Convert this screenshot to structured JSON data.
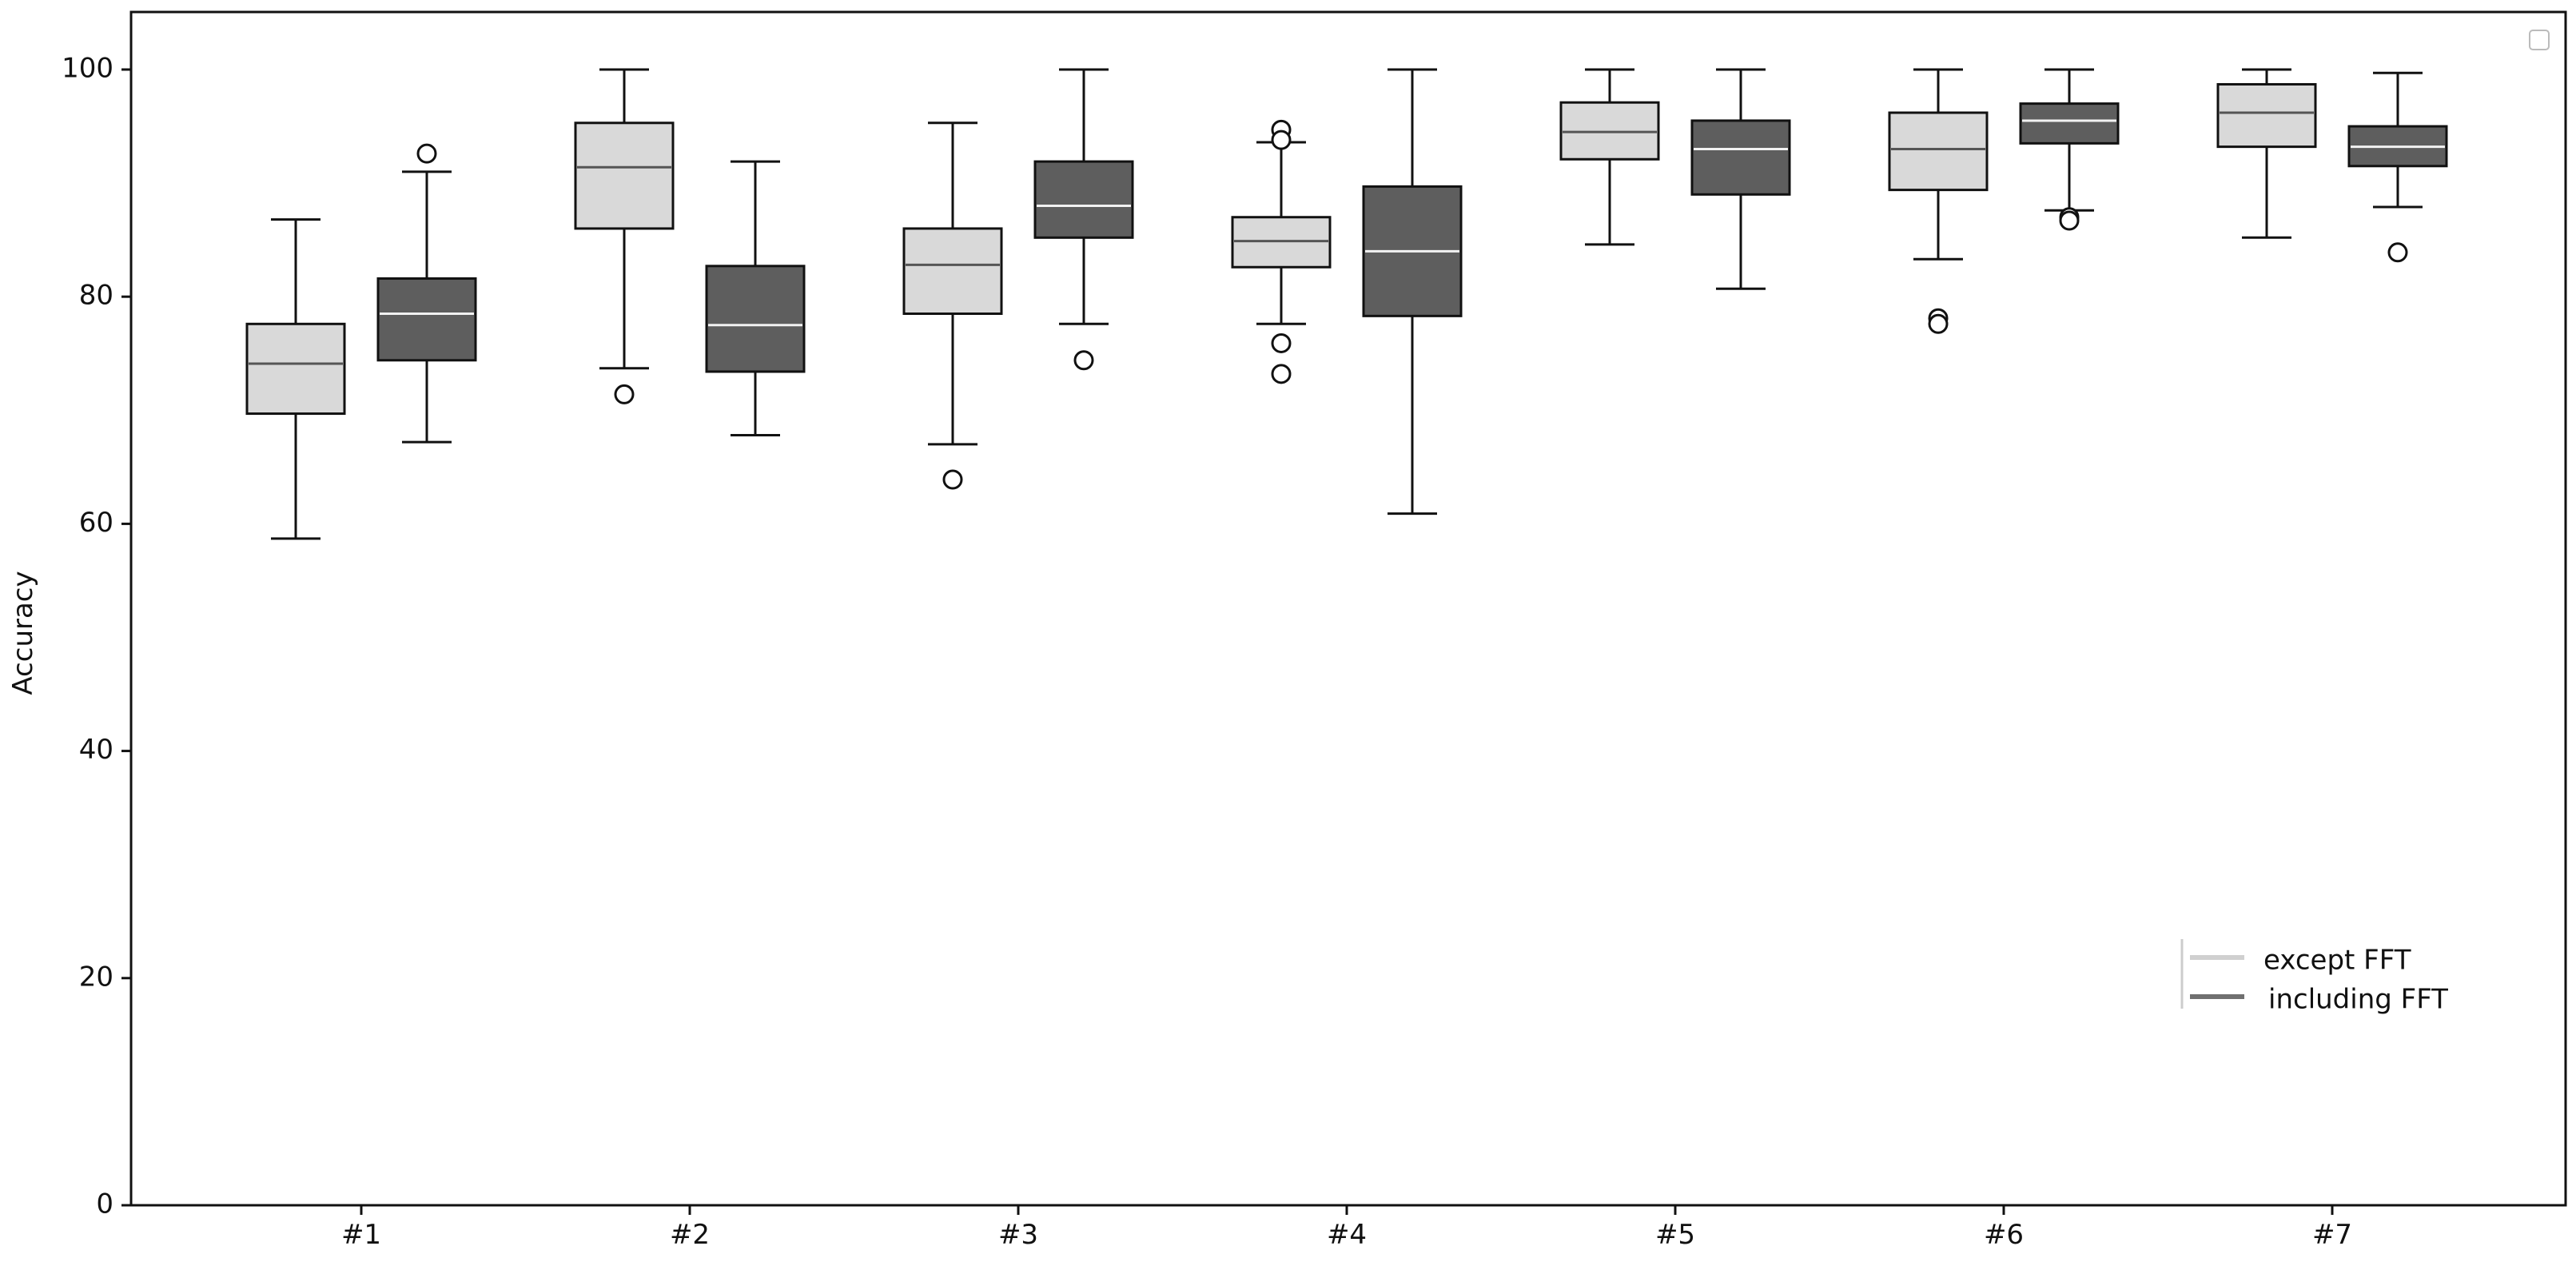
{
  "chart_data": {
    "type": "box",
    "title": "",
    "xlabel": "",
    "ylabel": "Accuracy",
    "ylim": [
      0,
      105
    ],
    "yticks": [
      0,
      20,
      40,
      60,
      80,
      100
    ],
    "categories": [
      "#1",
      "#2",
      "#3",
      "#4",
      "#5",
      "#6",
      "#7"
    ],
    "legend": {
      "position": "lower-right",
      "entries": [
        "except FFT",
        "including FFT"
      ]
    },
    "colors": {
      "except_fill": "#d9d9d9",
      "except_median": "#555555",
      "including_fill": "#5e5e5e",
      "including_median": "#f2f2f2",
      "legend_except": "#d0d0d0",
      "legend_including": "#707070",
      "stroke": "#111111"
    },
    "series": [
      {
        "name": "except FFT",
        "boxes": [
          {
            "whislo": 58.7,
            "q1": 69.7,
            "med": 74.1,
            "q3": 77.6,
            "whishi": 86.8,
            "fliers": []
          },
          {
            "whislo": 73.7,
            "q1": 86.0,
            "med": 91.4,
            "q3": 95.3,
            "whishi": 100.0,
            "fliers": [
              71.4
            ]
          },
          {
            "whislo": 67.0,
            "q1": 78.5,
            "med": 82.8,
            "q3": 86.0,
            "whishi": 95.3,
            "fliers": [
              63.9
            ]
          },
          {
            "whislo": 77.6,
            "q1": 82.6,
            "med": 84.9,
            "q3": 87.0,
            "whishi": 93.6,
            "fliers": [
              75.9,
              73.2,
              94.7,
              93.8
            ]
          },
          {
            "whislo": 84.6,
            "q1": 92.1,
            "med": 94.5,
            "q3": 97.1,
            "whishi": 100.0,
            "fliers": []
          },
          {
            "whislo": 83.3,
            "q1": 89.4,
            "med": 93.0,
            "q3": 96.2,
            "whishi": 100.0,
            "fliers": [
              78.1,
              77.6
            ]
          },
          {
            "whislo": 85.2,
            "q1": 93.2,
            "med": 96.2,
            "q3": 98.7,
            "whishi": 100.0,
            "fliers": []
          }
        ]
      },
      {
        "name": "including FFT",
        "boxes": [
          {
            "whislo": 67.2,
            "q1": 74.4,
            "med": 78.5,
            "q3": 81.6,
            "whishi": 91.0,
            "fliers": [
              92.6
            ]
          },
          {
            "whislo": 67.8,
            "q1": 73.4,
            "med": 77.5,
            "q3": 82.7,
            "whishi": 91.9,
            "fliers": []
          },
          {
            "whislo": 77.6,
            "q1": 85.2,
            "med": 88.0,
            "q3": 91.9,
            "whishi": 100.0,
            "fliers": [
              74.4
            ]
          },
          {
            "whislo": 60.9,
            "q1": 78.3,
            "med": 84.0,
            "q3": 89.7,
            "whishi": 100.0,
            "fliers": []
          },
          {
            "whislo": 80.7,
            "q1": 89.0,
            "med": 93.0,
            "q3": 95.5,
            "whishi": 100.0,
            "fliers": []
          },
          {
            "whislo": 87.6,
            "q1": 93.5,
            "med": 95.5,
            "q3": 97.0,
            "whishi": 100.0,
            "fliers": [
              87.0,
              86.7
            ]
          },
          {
            "whislo": 87.9,
            "q1": 91.5,
            "med": 93.2,
            "q3": 95.0,
            "whishi": 99.7,
            "fliers": [
              83.9
            ]
          }
        ]
      }
    ]
  }
}
